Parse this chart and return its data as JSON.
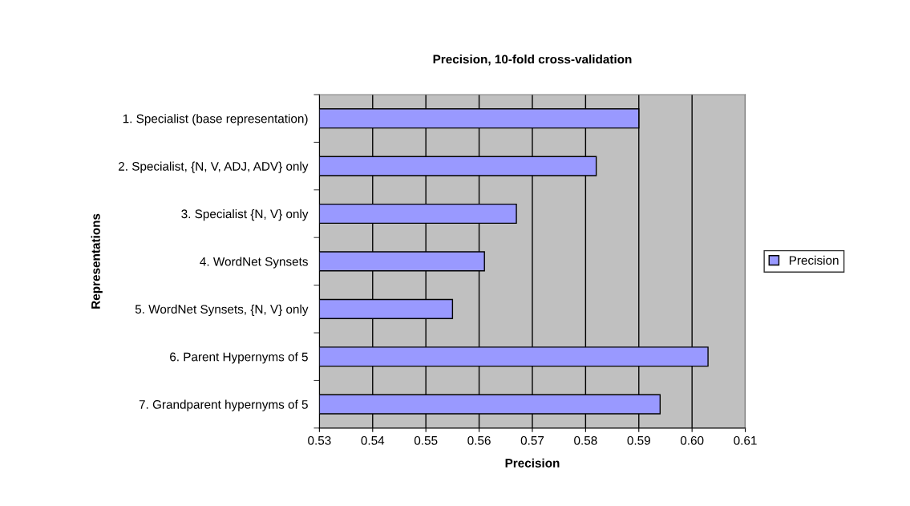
{
  "chart_data": {
    "type": "bar",
    "orientation": "horizontal",
    "title": "Precision, 10-fold cross-validation",
    "xlabel": "Precision",
    "ylabel": "Representations",
    "categories": [
      "1. Specialist (base representation)",
      "2. Specialist, {N, V, ADJ, ADV} only",
      "3. Specialist {N, V} only",
      "4. WordNet Synsets",
      "5. WordNet Synsets, {N, V} only",
      "6. Parent Hypernyms of 5",
      "7. Grandparent hypernyms of 5"
    ],
    "series": [
      {
        "name": "Precision",
        "color": "#9999ff",
        "values": [
          0.59,
          0.582,
          0.567,
          0.561,
          0.555,
          0.603,
          0.594
        ]
      }
    ],
    "xlim": [
      0.53,
      0.61
    ],
    "xticks": [
      {
        "value": 0.53,
        "label": "0.53"
      },
      {
        "value": 0.54,
        "label": "0.54"
      },
      {
        "value": 0.55,
        "label": "0.55"
      },
      {
        "value": 0.56,
        "label": "0.56"
      },
      {
        "value": 0.57,
        "label": "0.57"
      },
      {
        "value": 0.58,
        "label": "0.58"
      },
      {
        "value": 0.59,
        "label": "0.59"
      },
      {
        "value": 0.6,
        "label": "0.60"
      },
      {
        "value": 0.61,
        "label": "0.61"
      }
    ],
    "grid": "x",
    "legend": "right"
  }
}
